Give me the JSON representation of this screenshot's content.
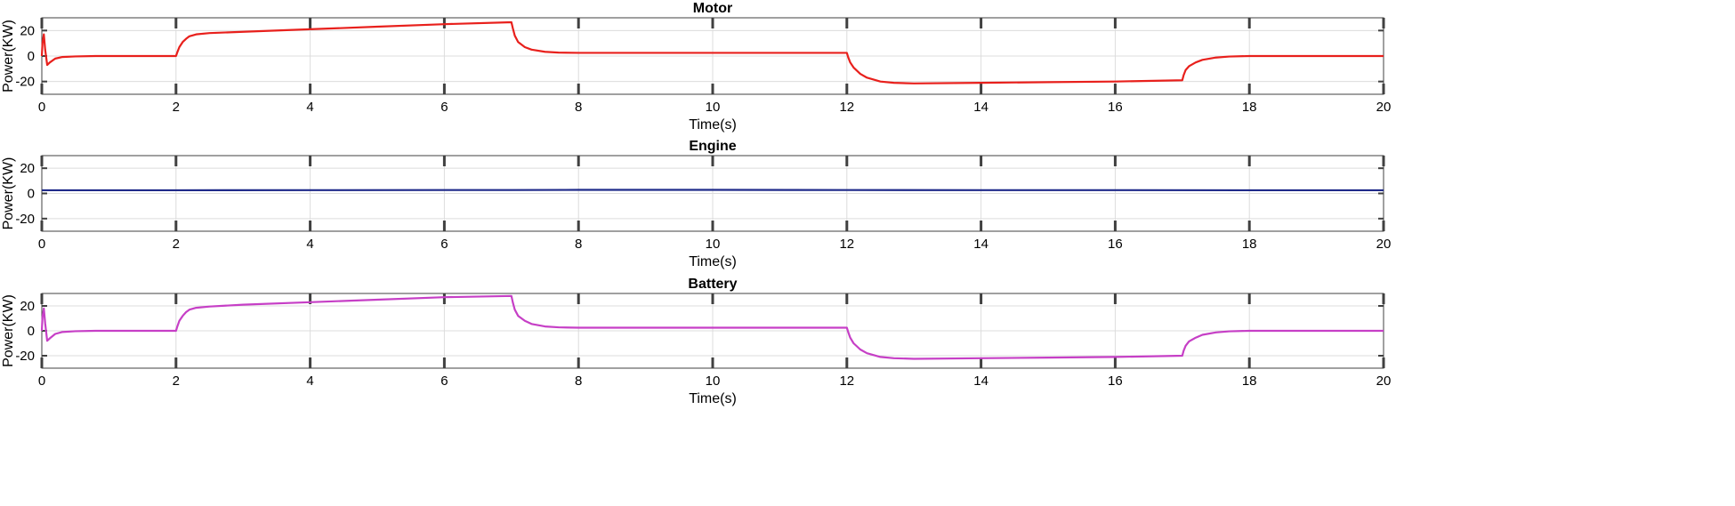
{
  "chart_data": [
    {
      "type": "line",
      "title": "Motor",
      "xlabel": "Time(s)",
      "ylabel": "Power(KW)",
      "xlim": [
        0,
        20
      ],
      "ylim": [
        -30,
        30
      ],
      "xticks": [
        0,
        2,
        4,
        6,
        8,
        10,
        12,
        14,
        16,
        18,
        20
      ],
      "yticks": [
        20,
        0,
        -20
      ],
      "grid": true,
      "series": [
        {
          "color": "#e8201c",
          "x": [
            0,
            0.01,
            0.03,
            0.05,
            0.08,
            0.12,
            0.2,
            0.3,
            0.5,
            0.8,
            1.0,
            1.5,
            2.0,
            2.02,
            2.05,
            2.1,
            2.15,
            2.2,
            2.3,
            2.5,
            3.0,
            4.0,
            5.0,
            6.0,
            7.0,
            7.02,
            7.05,
            7.1,
            7.2,
            7.3,
            7.5,
            7.7,
            8.0,
            9.0,
            10.0,
            11.0,
            12.0,
            12.02,
            12.05,
            12.1,
            12.2,
            12.3,
            12.5,
            12.7,
            13.0,
            14.0,
            15.0,
            16.0,
            17.0,
            17.02,
            17.05,
            17.1,
            17.2,
            17.3,
            17.5,
            17.7,
            18.0,
            19.0,
            20.0
          ],
          "values": [
            0,
            10,
            17,
            5,
            -7,
            -5,
            -2,
            -0.8,
            -0.3,
            0,
            0,
            0,
            0,
            3,
            7,
            11,
            13.5,
            15.5,
            17,
            18,
            19,
            21,
            23,
            25,
            26.5,
            22,
            16,
            11,
            7,
            5,
            3.3,
            2.7,
            2.5,
            2.5,
            2.5,
            2.5,
            2.5,
            -1,
            -5,
            -9,
            -14,
            -17,
            -20,
            -21,
            -21.5,
            -21,
            -20.5,
            -20,
            -19,
            -15,
            -11,
            -8,
            -5,
            -3,
            -1.2,
            -0.4,
            0,
            0,
            0
          ]
        }
      ]
    },
    {
      "type": "line",
      "title": "Engine",
      "xlabel": "Time(s)",
      "ylabel": "Power(KW)",
      "xlim": [
        0,
        20
      ],
      "ylim": [
        -30,
        30
      ],
      "xticks": [
        0,
        2,
        4,
        6,
        8,
        10,
        12,
        14,
        16,
        18,
        20
      ],
      "yticks": [
        20,
        0,
        -20
      ],
      "grid": true,
      "series": [
        {
          "color": "#1f2a8a",
          "x": [
            0,
            2,
            4,
            6,
            7,
            8,
            10,
            12,
            14,
            16,
            18,
            20
          ],
          "values": [
            2.5,
            2.5,
            2.6,
            2.7,
            2.7,
            2.8,
            2.8,
            2.7,
            2.6,
            2.6,
            2.5,
            2.5
          ]
        }
      ]
    },
    {
      "type": "line",
      "title": "Battery",
      "xlabel": "Time(s)",
      "ylabel": "Power(KW)",
      "xlim": [
        0,
        20
      ],
      "ylim": [
        -30,
        30
      ],
      "xticks": [
        0,
        2,
        4,
        6,
        8,
        10,
        12,
        14,
        16,
        18,
        20
      ],
      "yticks": [
        20,
        0,
        -20
      ],
      "grid": true,
      "series": [
        {
          "color": "#c63fc6",
          "x": [
            0,
            0.01,
            0.03,
            0.05,
            0.08,
            0.12,
            0.2,
            0.3,
            0.5,
            0.8,
            1.0,
            1.5,
            2.0,
            2.02,
            2.05,
            2.1,
            2.15,
            2.2,
            2.3,
            2.5,
            3.0,
            4.0,
            5.0,
            6.0,
            7.0,
            7.02,
            7.05,
            7.1,
            7.2,
            7.3,
            7.5,
            7.7,
            8.0,
            9.0,
            10.0,
            11.0,
            12.0,
            12.02,
            12.05,
            12.1,
            12.2,
            12.3,
            12.5,
            12.7,
            13.0,
            14.0,
            15.0,
            16.0,
            17.0,
            17.02,
            17.05,
            17.1,
            17.2,
            17.3,
            17.5,
            17.7,
            18.0,
            19.0,
            20.0
          ],
          "values": [
            0,
            11,
            18,
            6,
            -8,
            -6,
            -2.5,
            -1,
            -0.3,
            0,
            0,
            0,
            0,
            3.5,
            8,
            12,
            15,
            17,
            18.5,
            19.5,
            21,
            23,
            25,
            27,
            28,
            23,
            17,
            12,
            8,
            5.5,
            3.5,
            2.8,
            2.5,
            2.5,
            2.5,
            2.5,
            2.5,
            -1,
            -5.5,
            -10,
            -15,
            -18,
            -21,
            -22,
            -22.5,
            -22,
            -21.5,
            -21,
            -20,
            -16,
            -12,
            -8.5,
            -5.5,
            -3.2,
            -1.3,
            -0.4,
            0,
            0,
            0
          ]
        }
      ]
    }
  ]
}
